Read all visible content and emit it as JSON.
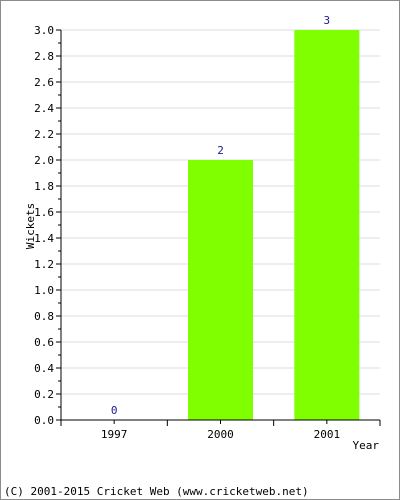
{
  "chart_data": {
    "type": "bar",
    "categories": [
      "1997",
      "2000",
      "2001"
    ],
    "values": [
      0,
      2,
      3
    ],
    "data_labels": [
      "0",
      "2",
      "3"
    ],
    "xlabel": "Year",
    "ylabel": "Wickets",
    "ylim": [
      0,
      3.0
    ],
    "yticks": [
      "0.0",
      "0.2",
      "0.4",
      "0.6",
      "0.8",
      "1.0",
      "1.2",
      "1.4",
      "1.6",
      "1.8",
      "2.0",
      "2.2",
      "2.4",
      "2.6",
      "2.8",
      "3.0"
    ],
    "grid": true,
    "bar_color": "#80ff00",
    "label_color": "#1a1a8c"
  },
  "footer": {
    "text": "(C) 2001-2015 Cricket Web (www.cricketweb.net)"
  }
}
